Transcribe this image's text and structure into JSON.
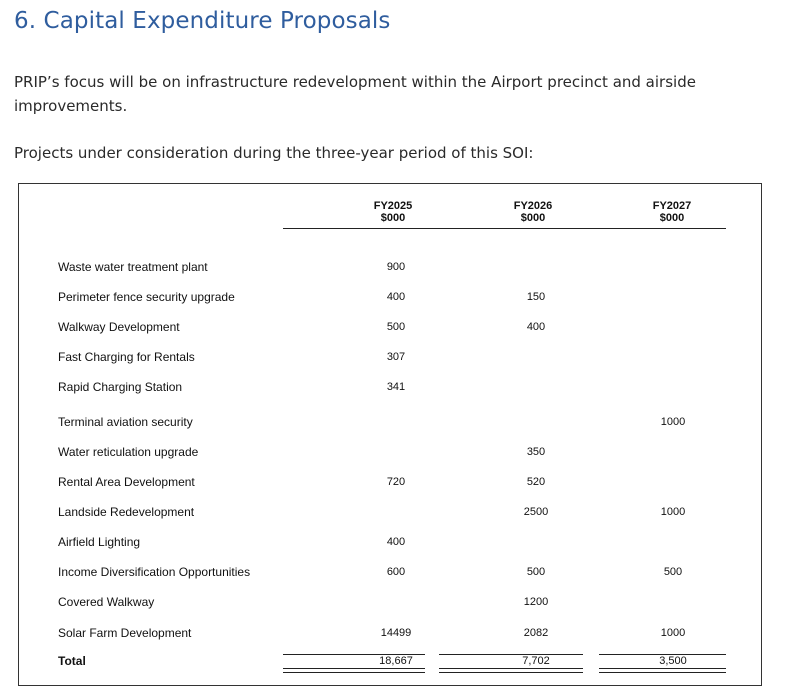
{
  "heading": "6. Capital Expenditure Proposals",
  "paragraphs": {
    "focus": "PRIP’s focus will be on infrastructure redevelopment within the Airport precinct and airside improvements.",
    "projects_intro": "Projects under consideration during the three-year period of this SOI:"
  },
  "table": {
    "columns": [
      {
        "year": "FY2025",
        "unit": "$000"
      },
      {
        "year": "FY2026",
        "unit": "$000"
      },
      {
        "year": "FY2027",
        "unit": "$000"
      }
    ],
    "rows": [
      {
        "label": "Waste water treatment plant",
        "values": [
          "900",
          "",
          ""
        ]
      },
      {
        "label": "Perimeter fence security upgrade",
        "values": [
          "400",
          "150",
          ""
        ]
      },
      {
        "label": "Walkway Development",
        "values": [
          "500",
          "400",
          ""
        ]
      },
      {
        "label": "Fast Charging for Rentals",
        "values": [
          "307",
          "",
          ""
        ]
      },
      {
        "label": "Rapid Charging Station",
        "values": [
          "341",
          "",
          ""
        ]
      },
      {
        "label": "Terminal aviation security",
        "values": [
          "",
          "",
          "1000"
        ]
      },
      {
        "label": "Water reticulation upgrade",
        "values": [
          "",
          "350",
          ""
        ]
      },
      {
        "label": "Rental Area Development",
        "values": [
          "720",
          "520",
          ""
        ]
      },
      {
        "label": "Landside Redevelopment",
        "values": [
          "",
          "2500",
          "1000"
        ]
      },
      {
        "label": "Airfield Lighting",
        "values": [
          "400",
          "",
          ""
        ]
      },
      {
        "label": "Income Diversification Opportunities",
        "values": [
          "600",
          "500",
          "500"
        ]
      },
      {
        "label": "Covered Walkway",
        "values": [
          "",
          "1200",
          ""
        ]
      },
      {
        "label": "Solar Farm Development",
        "values": [
          "14499",
          "2082",
          "1000"
        ]
      }
    ],
    "total": {
      "label": "Total",
      "values": [
        "18,667",
        "7,702",
        "3,500"
      ]
    }
  }
}
